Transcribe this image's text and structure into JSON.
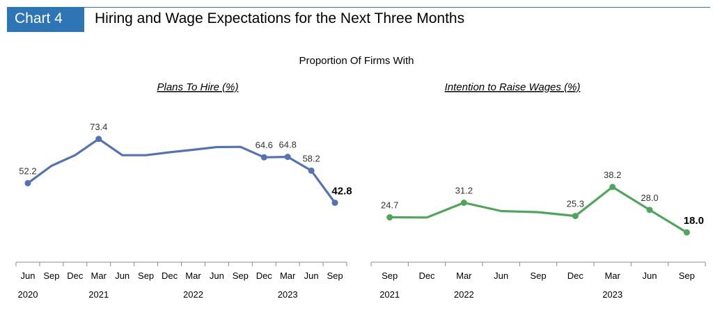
{
  "header": {
    "badge": "Chart 4",
    "title": "Hiring and Wage Expectations for the Next Three Months"
  },
  "subtitle": "Proportion Of Firms With",
  "colors": {
    "accent": "#2e75b6",
    "hire": "#5472b4",
    "wage": "#4ea65a"
  },
  "chart_data": [
    {
      "type": "line",
      "title": "Plans To Hire (%)",
      "x": [
        "Jun",
        "Sep",
        "Dec",
        "Mar",
        "Jun",
        "Sep",
        "Dec",
        "Mar",
        "Jun",
        "Sep",
        "Dec",
        "Mar",
        "Jun",
        "Sep"
      ],
      "years": [
        {
          "label": "2020",
          "at": 0
        },
        {
          "label": "2021",
          "at": 3
        },
        {
          "label": "2022",
          "at": 7
        },
        {
          "label": "2023",
          "at": 11
        }
      ],
      "series": [
        {
          "values": [
            52.2,
            60.5,
            65.6,
            73.4,
            65.6,
            65.6,
            67.0,
            68.2,
            69.5,
            69.6,
            64.6,
            64.8,
            58.2,
            42.8
          ]
        }
      ],
      "labels": [
        "52.2",
        "",
        "",
        "73.4",
        "",
        "",
        "",
        "",
        "",
        "",
        "64.6",
        "64.8",
        "58.2",
        "42.8"
      ],
      "bold_last": true,
      "ylim": [
        20,
        90
      ],
      "grid": false
    },
    {
      "type": "line",
      "title": "Intention to Raise Wages (%)",
      "x": [
        "Sep",
        "Dec",
        "Mar",
        "Jun",
        "Sep",
        "Dec",
        "Mar",
        "Jun",
        "Sep"
      ],
      "years": [
        {
          "label": "2021",
          "at": 0
        },
        {
          "label": "2022",
          "at": 2
        },
        {
          "label": "2023",
          "at": 6
        }
      ],
      "series": [
        {
          "values": [
            24.7,
            24.6,
            31.2,
            27.5,
            27.0,
            25.3,
            38.2,
            28.0,
            18.0
          ]
        }
      ],
      "labels": [
        "24.7",
        "",
        "31.2",
        "",
        "",
        "25.3",
        "38.2",
        "28.0",
        "18.0"
      ],
      "bold_last": true,
      "ylim": [
        10,
        75
      ],
      "grid": false
    }
  ]
}
